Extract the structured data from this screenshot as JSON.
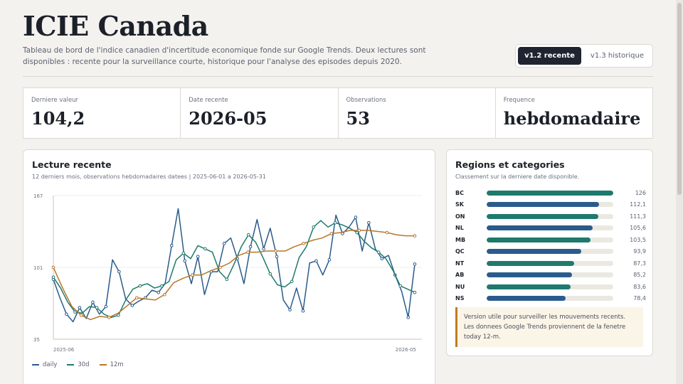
{
  "header": {
    "title": "ICIE Canada",
    "subtitle": "Tableau de bord de l'indice canadien d'incertitude economique fonde sur Google Trends. Deux lectures sont disponibles : recente pour la surveillance courte, historique pour l'analyse des episodes depuis 2020.",
    "versions": [
      {
        "label": "v1.2 recente",
        "active": true
      },
      {
        "label": "v1.3 historique",
        "active": false
      }
    ]
  },
  "stats": [
    {
      "label": "Derniere valeur",
      "value": "104,2"
    },
    {
      "label": "Date recente",
      "value": "2026-05"
    },
    {
      "label": "Observations",
      "value": "53"
    },
    {
      "label": "Frequence",
      "value": "hebdomadaire"
    }
  ],
  "main_card": {
    "title": "Lecture recente",
    "subtitle": "12 derniers mois, observations hebdomadaires datees | 2025-06-01 a 2026-05-31"
  },
  "chart_data": {
    "type": "line",
    "ylim": [
      35,
      167
    ],
    "y_ticks": [
      "167",
      "101",
      "35"
    ],
    "x_ticks": [
      "2025-06",
      "2026-05"
    ],
    "grid": true,
    "legend": "bottom-left",
    "series": [
      {
        "name": "daily",
        "color": "#2a5b8c",
        "values": [
          90,
          73,
          58,
          51,
          64,
          54,
          69,
          58,
          65,
          108,
          97,
          72,
          66,
          70,
          73,
          80,
          78,
          86,
          121,
          155,
          107,
          86,
          111,
          76,
          97,
          97,
          123,
          128,
          109,
          86,
          120,
          145,
          118,
          137,
          111,
          71,
          62,
          82,
          61,
          105,
          107,
          94,
          108,
          149,
          132,
          138,
          147,
          116,
          142,
          118,
          109,
          112,
          94,
          79,
          55,
          104
        ]
      },
      {
        "name": "30d",
        "color": "#1e7a6d",
        "values": [
          92,
          82,
          69,
          60,
          59,
          65,
          64,
          58,
          55,
          57,
          71,
          81,
          84,
          86,
          82,
          84,
          88,
          108,
          114,
          109,
          121,
          118,
          115,
          97,
          90,
          104,
          120,
          131,
          124,
          110,
          95,
          85,
          83,
          88,
          110,
          120,
          138,
          144,
          138,
          142,
          140,
          137,
          133,
          125,
          119,
          115,
          109,
          98,
          84,
          81,
          78
        ]
      },
      {
        "name": "12m",
        "color": "#b7762a",
        "values": [
          101,
          82,
          65,
          57,
          53,
          56,
          55,
          59,
          66,
          73,
          72,
          71,
          76,
          87,
          91,
          94,
          94,
          98,
          101,
          105,
          112,
          115,
          115,
          116,
          116,
          116,
          120,
          123,
          126,
          128,
          132,
          133,
          135,
          135,
          135,
          134,
          133,
          131,
          130,
          130
        ]
      }
    ]
  },
  "side_card": {
    "title": "Regions et categories",
    "subtitle": "Classement sur la derniere date disponible.",
    "ranks": [
      {
        "code": "BC",
        "value": 126,
        "label": "126",
        "color": "#1e7a6d"
      },
      {
        "code": "SK",
        "value": 112.1,
        "label": "112,1",
        "color": "#2a5b8c"
      },
      {
        "code": "ON",
        "value": 111.3,
        "label": "111,3",
        "color": "#1e7a6d"
      },
      {
        "code": "NL",
        "value": 105.6,
        "label": "105,6",
        "color": "#2a5b8c"
      },
      {
        "code": "MB",
        "value": 103.5,
        "label": "103,5",
        "color": "#1e7a6d"
      },
      {
        "code": "QC",
        "value": 93.9,
        "label": "93,9",
        "color": "#2a5b8c"
      },
      {
        "code": "NT",
        "value": 87.3,
        "label": "87,3",
        "color": "#1e7a6d"
      },
      {
        "code": "AB",
        "value": 85.2,
        "label": "85,2",
        "color": "#2a5b8c"
      },
      {
        "code": "NU",
        "value": 83.6,
        "label": "83,6",
        "color": "#1e7a6d"
      },
      {
        "code": "NS",
        "value": 78.4,
        "label": "78,4",
        "color": "#2a5b8c"
      }
    ],
    "rank_max": 126,
    "note": "Version utile pour surveiller les mouvements recents. Les donnees Google Trends proviennent de la fenetre today 12-m."
  }
}
